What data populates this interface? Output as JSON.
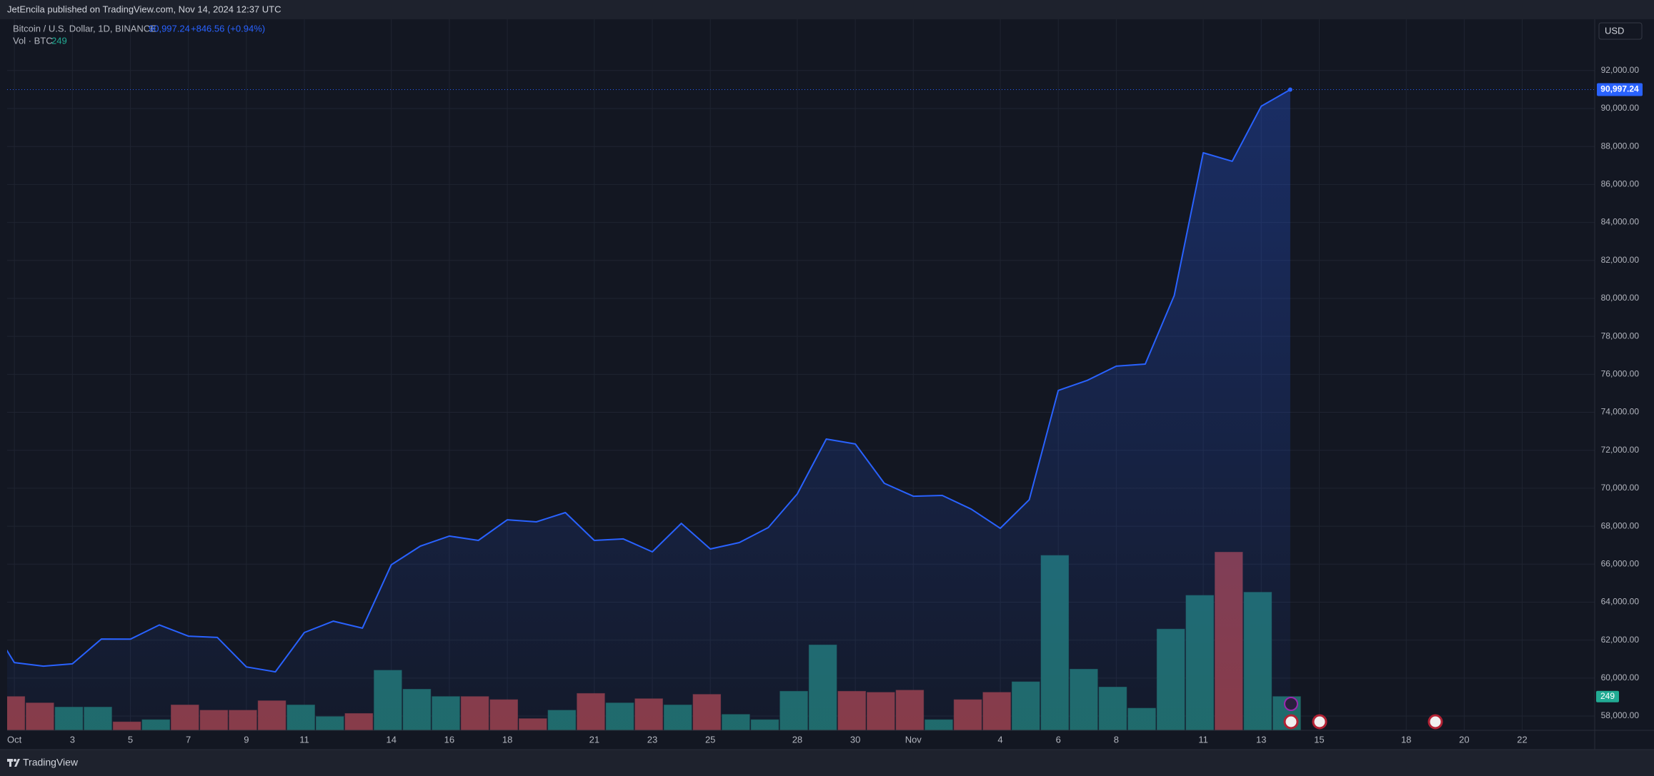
{
  "header": {
    "text": "JetEncila published on TradingView.com, Nov 14, 2024 12:37 UTC"
  },
  "legend": {
    "symbol": "Bitcoin / U.S. Dollar, 1D, BINANCE",
    "price": "90,997.24",
    "change": "+846.56 (+0.94%)",
    "volume_name": "Vol · BTC"
  },
  "currency": "USD",
  "footer": "TradingView",
  "chart_data": {
    "type": "area",
    "x": [
      "2024-09-30",
      "2024-10-01",
      "2024-10-02",
      "2024-10-03",
      "2024-10-04",
      "2024-10-05",
      "2024-10-06",
      "2024-10-07",
      "2024-10-08",
      "2024-10-09",
      "2024-10-10",
      "2024-10-11",
      "2024-10-12",
      "2024-10-13",
      "2024-10-14",
      "2024-10-15",
      "2024-10-16",
      "2024-10-17",
      "2024-10-18",
      "2024-10-19",
      "2024-10-20",
      "2024-10-21",
      "2024-10-22",
      "2024-10-23",
      "2024-10-24",
      "2024-10-25",
      "2024-10-26",
      "2024-10-27",
      "2024-10-28",
      "2024-10-29",
      "2024-10-30",
      "2024-10-31",
      "2024-11-01",
      "2024-11-02",
      "2024-11-03",
      "2024-11-04",
      "2024-11-05",
      "2024-11-06",
      "2024-11-07",
      "2024-11-08",
      "2024-11-09",
      "2024-11-10",
      "2024-11-11",
      "2024-11-12",
      "2024-11-13",
      "2024-11-14"
    ],
    "series": [
      {
        "name": "Bitcoin / U.S. Dollar",
        "color": "#2962ff",
        "values": [
          63300,
          60820,
          60630,
          60750,
          62060,
          62050,
          62800,
          62210,
          62140,
          60590,
          60330,
          62400,
          63000,
          62630,
          65970,
          66950,
          67480,
          67250,
          68340,
          68230,
          68720,
          67250,
          67330,
          66650,
          68150,
          66800,
          67140,
          67930,
          69700,
          72590,
          72330,
          70260,
          69580,
          69620,
          68900,
          67890,
          69400,
          75150,
          75680,
          76430,
          76540,
          80150,
          87670,
          87220,
          90120,
          90997.24
        ]
      },
      {
        "name": "Vol · BTC",
        "axis": "y2",
        "type": "bar",
        "colors": [
          null,
          "#8b3a42",
          "#8b3a42",
          "#1f6b66",
          "#1f6b66",
          "#8b3a42",
          "#1f6b66",
          "#8b3a42",
          "#8b3a42",
          "#8b3a42",
          "#8b3a42",
          "#1f6b66",
          "#1f6b66",
          "#8b3a42",
          "#1f6b66",
          "#1f6b66",
          "#1f6b66",
          "#8b3a42",
          "#8b3a42",
          "#8b3a42",
          "#1f6b66",
          "#8b3a42",
          "#1f6b66",
          "#8b3a42",
          "#1f6b66",
          "#8b3a42",
          "#1f6b66",
          "#1f6b66",
          "#1f6b66",
          "#1f6b66",
          "#8b3a42",
          "#8b3a42",
          "#8b3a42",
          "#1f6b66",
          "#8b3a42",
          "#8b3a42",
          "#1f6b66",
          "#1f6b66",
          "#1f6b66",
          "#1f6b66",
          "#1f6b66",
          "#1f6b66",
          "#1f6b66",
          "#8b3a42",
          "#1f6b66",
          "#1f6b66"
        ],
        "values": [
          null,
          249,
          202,
          171,
          171,
          62,
          78,
          187,
          148,
          148,
          218,
          187,
          101,
          124,
          443,
          303,
          249,
          249,
          226,
          86,
          148,
          272,
          202,
          233,
          187,
          265,
          117,
          78,
          288,
          630,
          288,
          280,
          296,
          78,
          226,
          280,
          358,
          1291,
          451,
          319,
          163,
          747,
          996,
          1315,
          1019,
          249
        ]
      }
    ],
    "last_value_label": "90,997.24",
    "xlim": [
      "2024-09-30T18:00",
      "2024-11-24T12:00"
    ],
    "xticks": [
      {
        "value": "2024-10-01",
        "label": "Oct"
      },
      {
        "value": "2024-10-03",
        "label": "3"
      },
      {
        "value": "2024-10-05",
        "label": "5"
      },
      {
        "value": "2024-10-07",
        "label": "7"
      },
      {
        "value": "2024-10-09",
        "label": "9"
      },
      {
        "value": "2024-10-11",
        "label": "11"
      },
      {
        "value": "2024-10-14",
        "label": "14"
      },
      {
        "value": "2024-10-16",
        "label": "16"
      },
      {
        "value": "2024-10-18",
        "label": "18"
      },
      {
        "value": "2024-10-21",
        "label": "21"
      },
      {
        "value": "2024-10-23",
        "label": "23"
      },
      {
        "value": "2024-10-25",
        "label": "25"
      },
      {
        "value": "2024-10-28",
        "label": "28"
      },
      {
        "value": "2024-10-30",
        "label": "30"
      },
      {
        "value": "2024-11-01",
        "label": "Nov"
      },
      {
        "value": "2024-11-04",
        "label": "4"
      },
      {
        "value": "2024-11-06",
        "label": "6"
      },
      {
        "value": "2024-11-08",
        "label": "8"
      },
      {
        "value": "2024-11-11",
        "label": "11"
      },
      {
        "value": "2024-11-13",
        "label": "13"
      },
      {
        "value": "2024-11-15",
        "label": "15"
      },
      {
        "value": "2024-11-18",
        "label": "18"
      },
      {
        "value": "2024-11-20",
        "label": "20"
      },
      {
        "value": "2024-11-22",
        "label": "22"
      }
    ],
    "ylim": [
      57250,
      94700
    ],
    "yticks": [
      {
        "value": 58000,
        "label": "58,000.00"
      },
      {
        "value": 60000,
        "label": "60,000.00"
      },
      {
        "value": 62000,
        "label": "62,000.00"
      },
      {
        "value": 64000,
        "label": "64,000.00"
      },
      {
        "value": 66000,
        "label": "66,000.00"
      },
      {
        "value": 68000,
        "label": "68,000.00"
      },
      {
        "value": 70000,
        "label": "70,000.00"
      },
      {
        "value": 72000,
        "label": "72,000.00"
      },
      {
        "value": 74000,
        "label": "74,000.00"
      },
      {
        "value": 76000,
        "label": "76,000.00"
      },
      {
        "value": 78000,
        "label": "78,000.00"
      },
      {
        "value": 80000,
        "label": "80,000.00"
      },
      {
        "value": 82000,
        "label": "82,000.00"
      },
      {
        "value": 84000,
        "label": "84,000.00"
      },
      {
        "value": 86000,
        "label": "86,000.00"
      },
      {
        "value": 88000,
        "label": "88,000.00"
      },
      {
        "value": 90000,
        "label": "90,000.00"
      },
      {
        "value": 92000,
        "label": "92,000.00"
      }
    ],
    "y2lim": [
      0,
      5250
    ],
    "grid": true
  }
}
